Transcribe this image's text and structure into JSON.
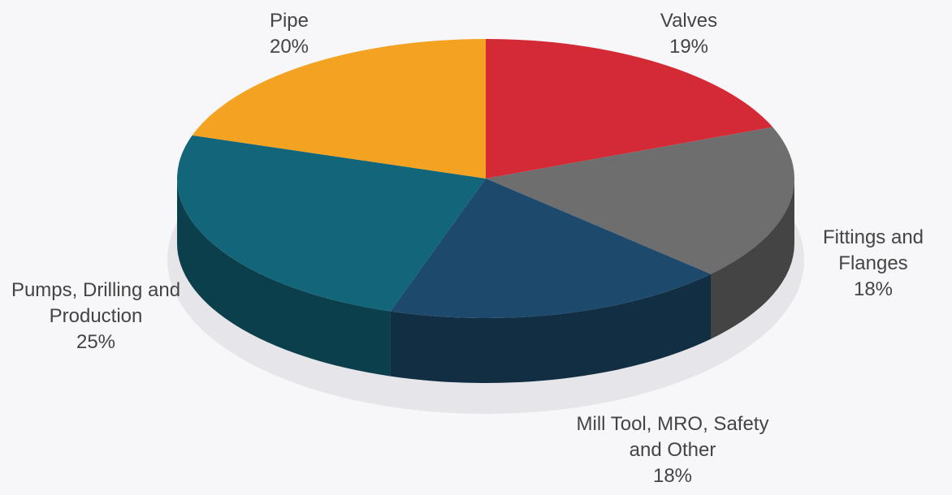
{
  "chart_data": {
    "type": "pie",
    "categories": [
      "Valves",
      "Fittings and Flanges",
      "Mill Tool, MRO, Safety and Other",
      "Pumps, Drilling and Production",
      "Pipe"
    ],
    "values": [
      19,
      18,
      18,
      25,
      20
    ],
    "value_labels": [
      "19%",
      "18%",
      "18%",
      "25%",
      "20%"
    ],
    "colors": [
      "#d42a35",
      "#6e6e6e",
      "#1d4a6c",
      "#13667a",
      "#f3a321"
    ]
  }
}
